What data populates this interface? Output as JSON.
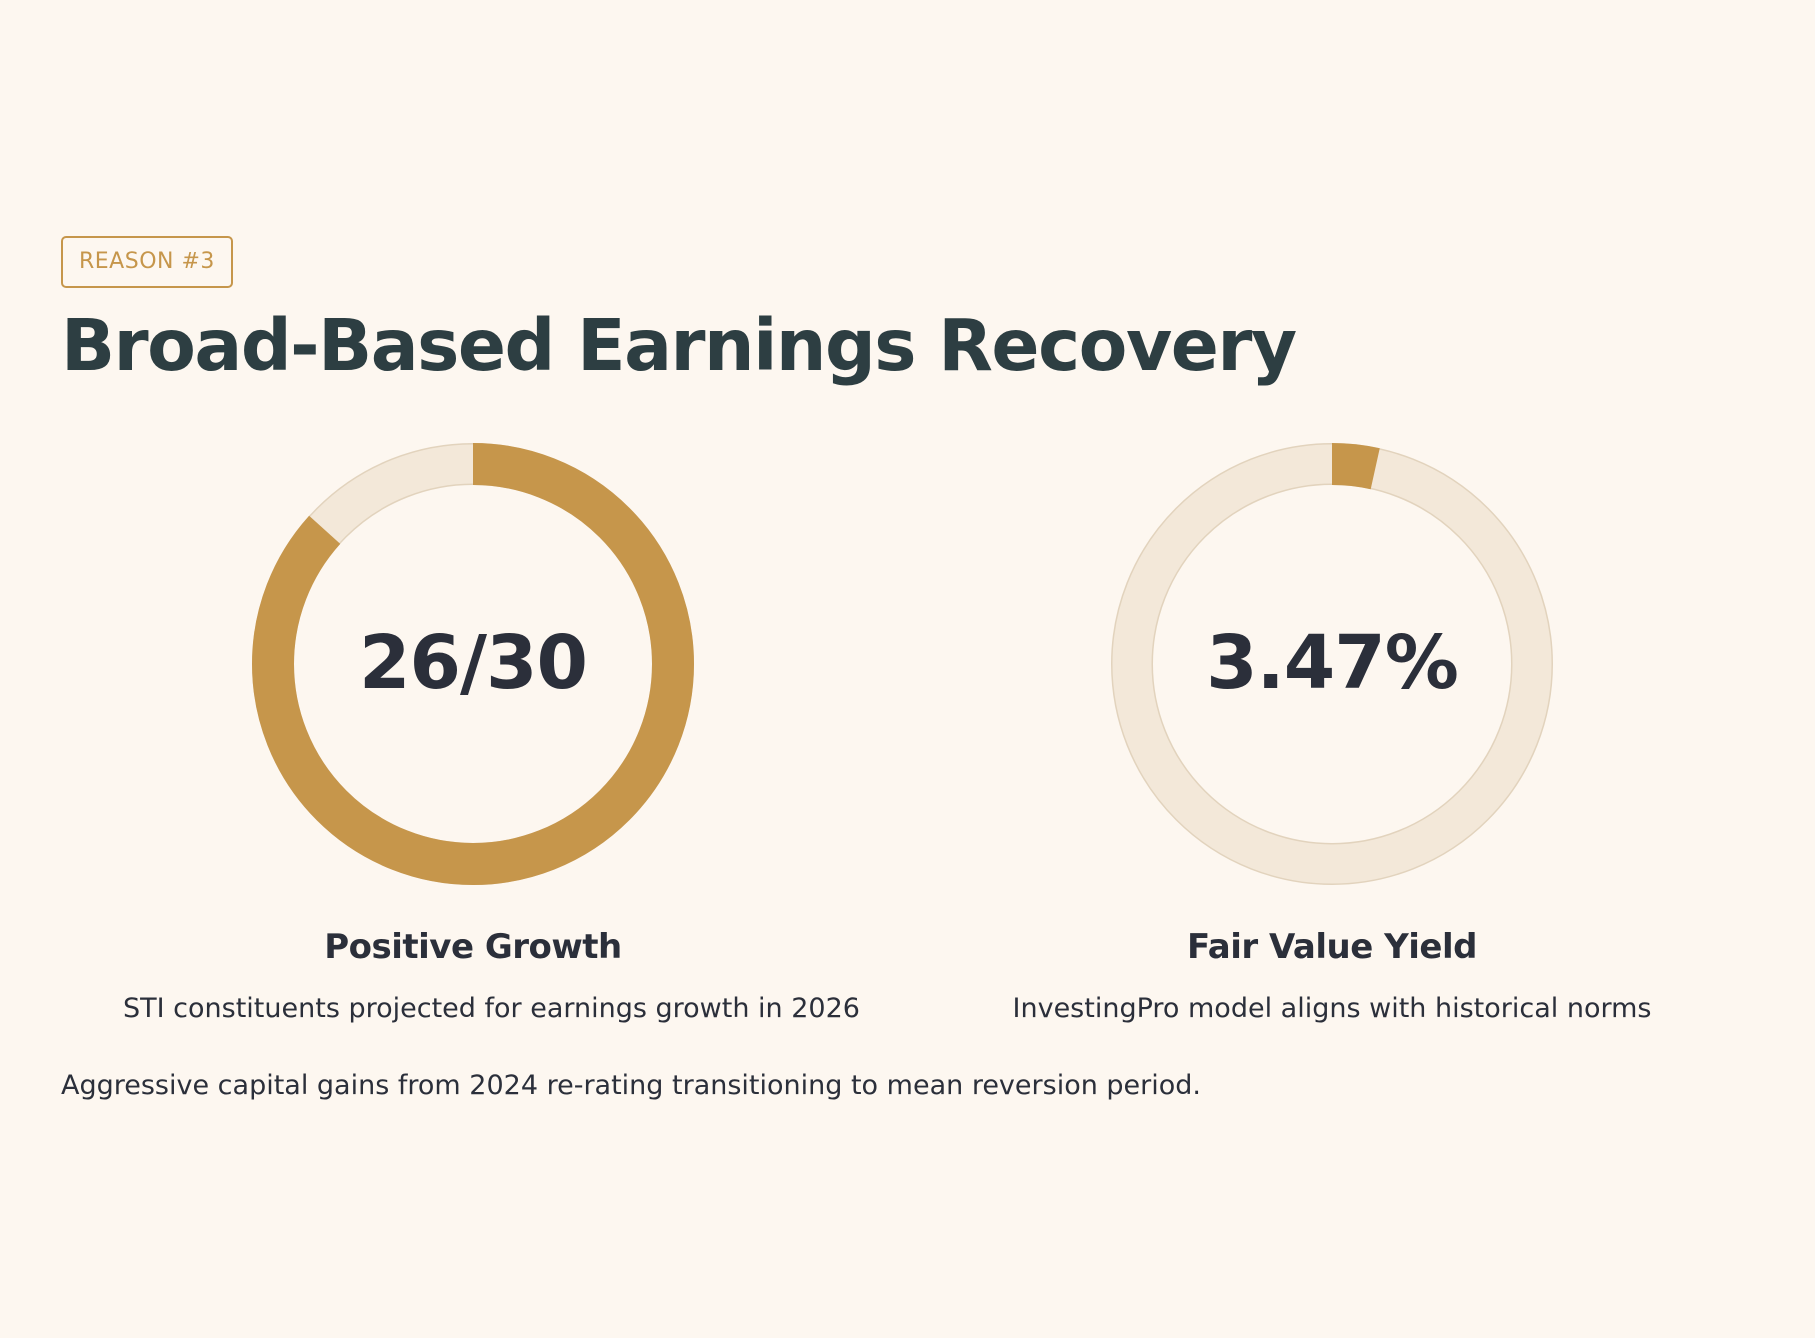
{
  "badge": {
    "label": "REASON #3"
  },
  "title": "Broad-Based Earnings Recovery",
  "colors": {
    "background": "#fdf7f0",
    "accent": "#c6964b",
    "ring_track": "#f3e8d9",
    "ring_track_border": "#e2d3bd",
    "title_text": "#2d3e42",
    "body_text": "#2b2f3a"
  },
  "stats": [
    {
      "value": "26/30",
      "label": "Positive Growth",
      "description": "STI constituents projected for earnings growth in 2026",
      "fill_fraction": 0.8667
    },
    {
      "value": "3.47%",
      "label": "Fair Value Yield",
      "description": "InvestingPro model aligns with historical norms",
      "fill_fraction": 0.0347
    }
  ],
  "footnote": "Aggressive capital gains from 2024 re-rating transitioning to mean reversion period."
}
